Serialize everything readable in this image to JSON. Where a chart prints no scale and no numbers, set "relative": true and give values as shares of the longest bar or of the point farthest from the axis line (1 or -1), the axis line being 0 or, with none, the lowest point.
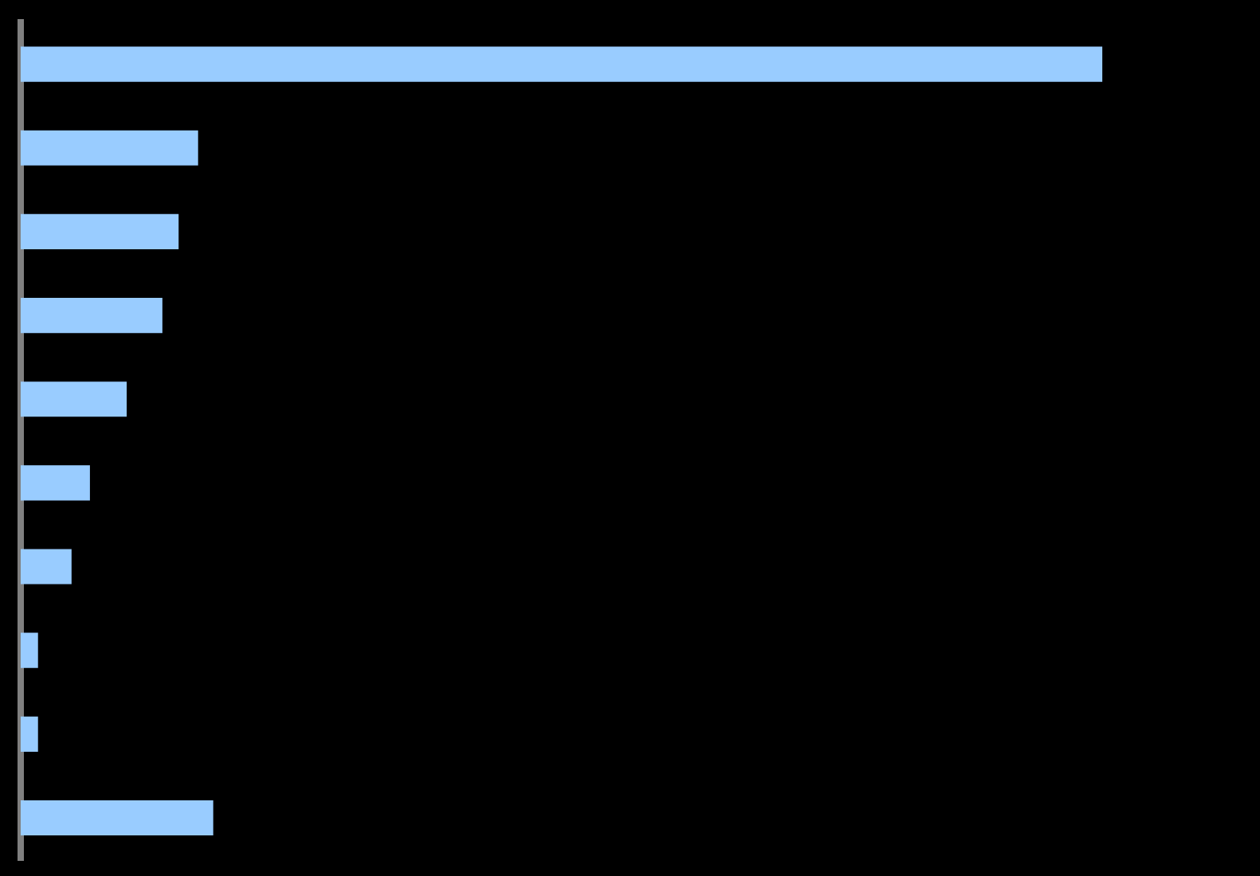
{
  "chart_data": {
    "type": "bar",
    "orientation": "horizontal",
    "relative": true,
    "categories": [
      null,
      null,
      null,
      null,
      null,
      null,
      null,
      null,
      null,
      null
    ],
    "values": [
      1,
      0.164,
      0.146,
      0.131,
      0.098,
      0.064,
      0.047,
      0.016,
      0.016,
      0.178
    ],
    "color": "#99ccff"
  }
}
